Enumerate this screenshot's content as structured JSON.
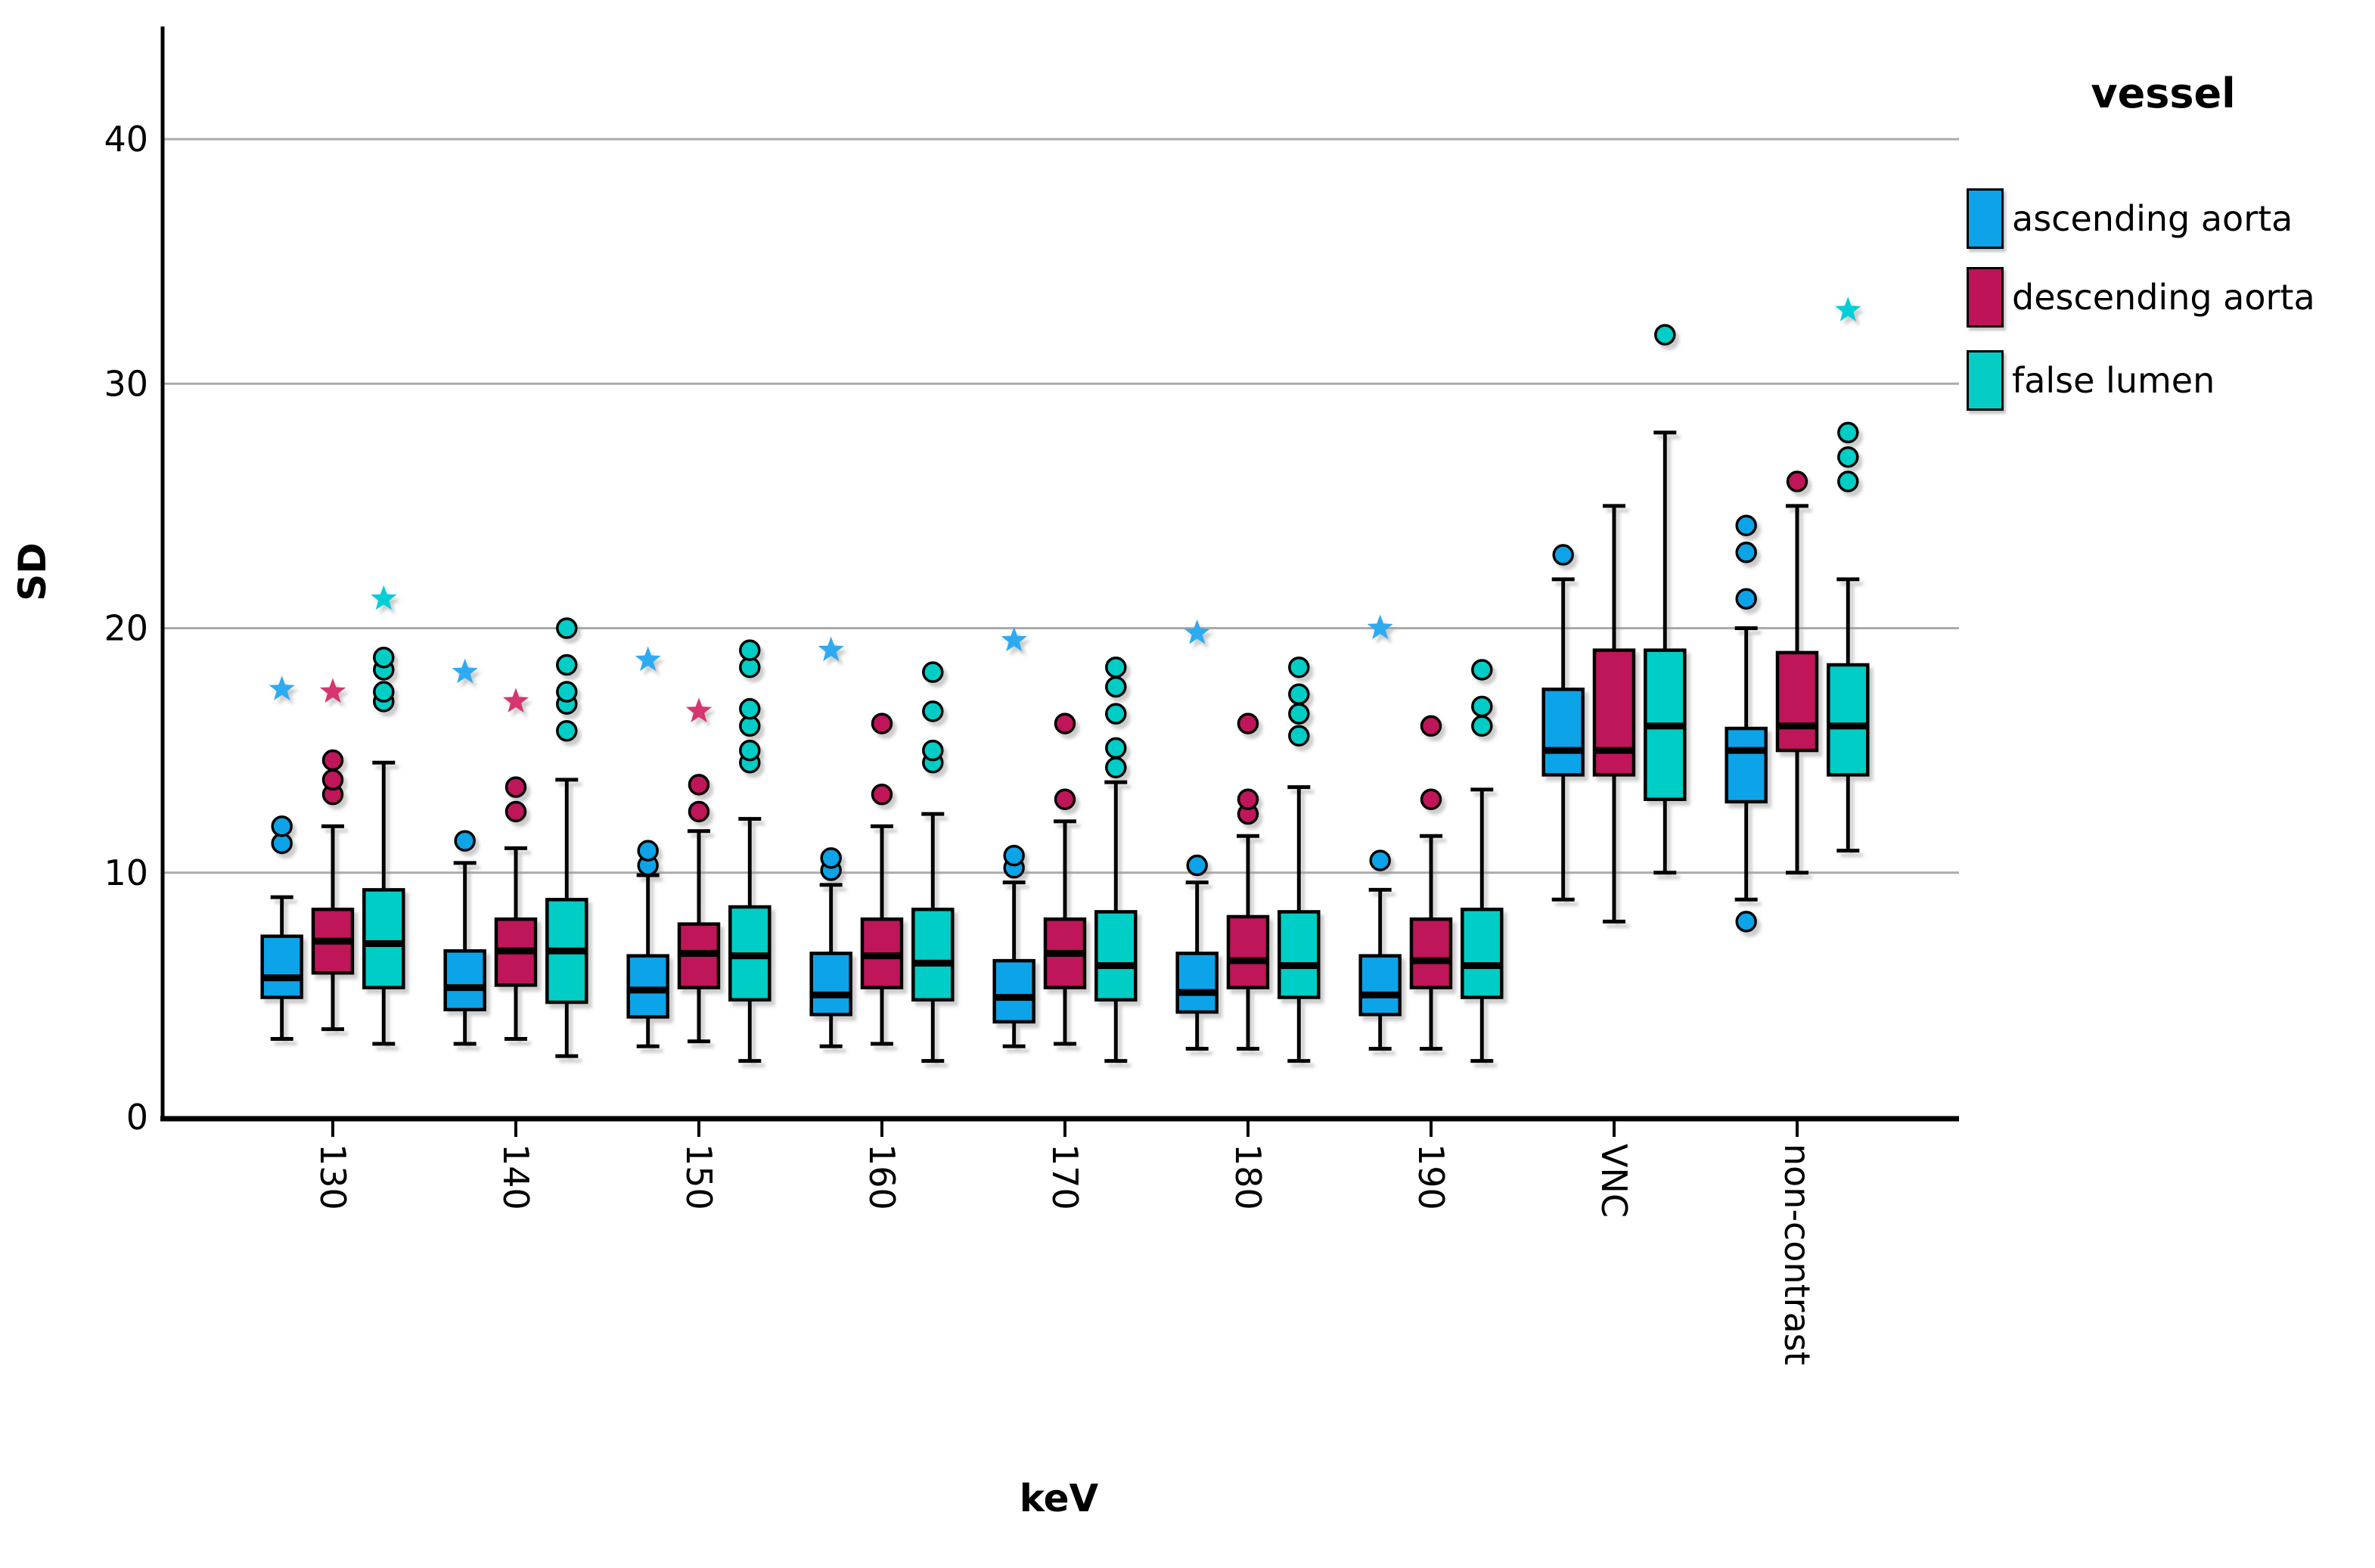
{
  "axes": {
    "y_title": "SD",
    "x_title": "keV",
    "y_ticks": [
      0,
      10,
      20,
      30,
      40
    ],
    "categories": [
      "130",
      "140",
      "150",
      "160",
      "170",
      "180",
      "190",
      "VNC",
      "non-contrast"
    ]
  },
  "legend": {
    "title": "vessel",
    "items": [
      {
        "label": "ascending aorta",
        "color": "#0EA3E8"
      },
      {
        "label": "descending aorta",
        "color": "#BE1259"
      },
      {
        "label": "false lumen",
        "color": "#05CDC5"
      }
    ]
  },
  "colors": {
    "gridline": "#ABABAB",
    "axis": "#000000",
    "text": "#000000",
    "background": "#ffffff"
  },
  "chart_data": {
    "type": "boxplot",
    "xlabel": "keV",
    "ylabel": "SD",
    "ylim": [
      0,
      44.6
    ],
    "y_ticks": [
      0,
      10,
      20,
      30,
      40
    ],
    "grid": "horizontal",
    "legend_position": "top-right",
    "categories": [
      "130",
      "140",
      "150",
      "160",
      "170",
      "180",
      "190",
      "VNC",
      "non-contrast"
    ],
    "series": [
      {
        "name": "ascending aorta",
        "color": "#0EA3E8",
        "star_color": "#2FAAF2",
        "boxes": [
          {
            "whislo": 3.2,
            "q1": 4.9,
            "med": 5.7,
            "q3": 7.4,
            "whishi": 9.0,
            "outliers": [
              11.2,
              11.9
            ],
            "extremes": [
              17.5
            ]
          },
          {
            "whislo": 3.0,
            "q1": 4.4,
            "med": 5.3,
            "q3": 6.8,
            "whishi": 10.4,
            "outliers": [
              11.3
            ],
            "extremes": [
              18.2
            ]
          },
          {
            "whislo": 2.9,
            "q1": 4.1,
            "med": 5.2,
            "q3": 6.6,
            "whishi": 9.9,
            "outliers": [
              10.3,
              10.9
            ],
            "extremes": [
              18.7
            ]
          },
          {
            "whislo": 2.9,
            "q1": 4.2,
            "med": 5.0,
            "q3": 6.7,
            "whishi": 9.5,
            "outliers": [
              10.1,
              10.6
            ],
            "extremes": [
              19.1
            ]
          },
          {
            "whislo": 2.9,
            "q1": 3.9,
            "med": 4.9,
            "q3": 6.4,
            "whishi": 9.6,
            "outliers": [
              10.2,
              10.7
            ],
            "extremes": [
              19.5
            ]
          },
          {
            "whislo": 2.8,
            "q1": 4.3,
            "med": 5.1,
            "q3": 6.7,
            "whishi": 9.6,
            "outliers": [
              10.3
            ],
            "extremes": [
              19.8
            ]
          },
          {
            "whislo": 2.8,
            "q1": 4.2,
            "med": 5.0,
            "q3": 6.6,
            "whishi": 9.3,
            "outliers": [
              10.5
            ],
            "extremes": [
              20.0
            ]
          },
          {
            "whislo": 8.9,
            "q1": 14.0,
            "med": 15.0,
            "q3": 17.5,
            "whishi": 22.0,
            "outliers": [
              23.0
            ],
            "extremes": []
          },
          {
            "whislo": 8.9,
            "q1": 12.9,
            "med": 15.0,
            "q3": 15.9,
            "whishi": 20.0,
            "outliers": [
              8.0,
              21.2,
              23.1,
              24.2
            ],
            "extremes": []
          }
        ]
      },
      {
        "name": "descending aorta",
        "color": "#BE1259",
        "star_color": "#D63571",
        "boxes": [
          {
            "whislo": 3.6,
            "q1": 5.9,
            "med": 7.2,
            "q3": 8.5,
            "whishi": 11.9,
            "outliers": [
              13.2,
              13.8,
              14.6
            ],
            "extremes": [
              17.4
            ]
          },
          {
            "whislo": 3.2,
            "q1": 5.4,
            "med": 6.8,
            "q3": 8.1,
            "whishi": 11.0,
            "outliers": [
              12.5,
              13.5
            ],
            "extremes": [
              17.0
            ]
          },
          {
            "whislo": 3.1,
            "q1": 5.3,
            "med": 6.7,
            "q3": 7.9,
            "whishi": 11.7,
            "outliers": [
              12.5,
              13.6
            ],
            "extremes": [
              16.6
            ]
          },
          {
            "whislo": 3.0,
            "q1": 5.3,
            "med": 6.6,
            "q3": 8.1,
            "whishi": 11.9,
            "outliers": [
              13.2,
              16.1
            ],
            "extremes": []
          },
          {
            "whislo": 3.0,
            "q1": 5.3,
            "med": 6.7,
            "q3": 8.1,
            "whishi": 12.1,
            "outliers": [
              13.0,
              16.1
            ],
            "extremes": []
          },
          {
            "whislo": 2.8,
            "q1": 5.3,
            "med": 6.4,
            "q3": 8.2,
            "whishi": 11.5,
            "outliers": [
              12.4,
              13.0,
              16.1
            ],
            "extremes": []
          },
          {
            "whislo": 2.8,
            "q1": 5.3,
            "med": 6.4,
            "q3": 8.1,
            "whishi": 11.5,
            "outliers": [
              13.0,
              16.0
            ],
            "extremes": []
          },
          {
            "whislo": 8.0,
            "q1": 14.0,
            "med": 15.0,
            "q3": 19.1,
            "whishi": 25.0,
            "outliers": [],
            "extremes": []
          },
          {
            "whislo": 10.0,
            "q1": 15.0,
            "med": 16.0,
            "q3": 19.0,
            "whishi": 25.0,
            "outliers": [
              26.0
            ],
            "extremes": []
          }
        ]
      },
      {
        "name": "false lumen",
        "color": "#05CDC5",
        "star_color": "#00CFD6",
        "boxes": [
          {
            "whislo": 3.0,
            "q1": 5.3,
            "med": 7.1,
            "q3": 9.3,
            "whishi": 14.5,
            "outliers": [
              17.0,
              17.4,
              18.3,
              18.8
            ],
            "extremes": [
              21.2
            ]
          },
          {
            "whislo": 2.5,
            "q1": 4.7,
            "med": 6.8,
            "q3": 8.9,
            "whishi": 13.8,
            "outliers": [
              15.8,
              16.9,
              17.4,
              18.5,
              20.0
            ],
            "extremes": []
          },
          {
            "whislo": 2.3,
            "q1": 4.8,
            "med": 6.6,
            "q3": 8.6,
            "whishi": 12.2,
            "outliers": [
              14.5,
              15.0,
              16.0,
              16.7,
              18.4,
              19.1
            ],
            "extremes": []
          },
          {
            "whislo": 2.3,
            "q1": 4.8,
            "med": 6.3,
            "q3": 8.5,
            "whishi": 12.4,
            "outliers": [
              14.5,
              15.0,
              16.6,
              18.2
            ],
            "extremes": []
          },
          {
            "whislo": 2.3,
            "q1": 4.8,
            "med": 6.2,
            "q3": 8.4,
            "whishi": 13.7,
            "outliers": [
              14.3,
              15.1,
              16.5,
              17.6,
              18.4
            ],
            "extremes": []
          },
          {
            "whislo": 2.3,
            "q1": 4.9,
            "med": 6.2,
            "q3": 8.4,
            "whishi": 13.5,
            "outliers": [
              15.6,
              16.5,
              17.3,
              18.4
            ],
            "extremes": []
          },
          {
            "whislo": 2.3,
            "q1": 4.9,
            "med": 6.2,
            "q3": 8.5,
            "whishi": 13.4,
            "outliers": [
              16.0,
              16.8,
              18.3
            ],
            "extremes": []
          },
          {
            "whislo": 10.0,
            "q1": 13.0,
            "med": 16.0,
            "q3": 19.1,
            "whishi": 28.0,
            "outliers": [
              32.0
            ],
            "extremes": []
          },
          {
            "whislo": 10.9,
            "q1": 14.0,
            "med": 16.0,
            "q3": 18.5,
            "whishi": 22.0,
            "outliers": [
              26.0,
              27.0,
              28.0
            ],
            "extremes": [
              33.0
            ]
          }
        ]
      }
    ]
  }
}
